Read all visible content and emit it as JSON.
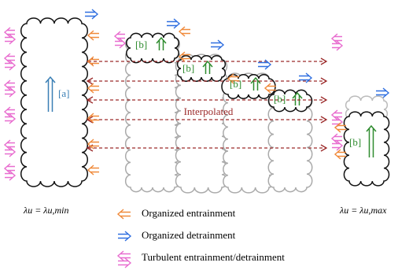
{
  "cloud_labels": {
    "a": "[a]",
    "b": [
      "[b]",
      "[b]",
      "[b]",
      "[b]",
      "[b]"
    ]
  },
  "interpolated": "Interpolated",
  "lambda_min": "λu = λu,min",
  "lambda_max": "λu = λu,max",
  "legend": [
    "Organized entrainment",
    "Organized detrainment",
    "Turbulent entrainment/detrainment"
  ]
}
